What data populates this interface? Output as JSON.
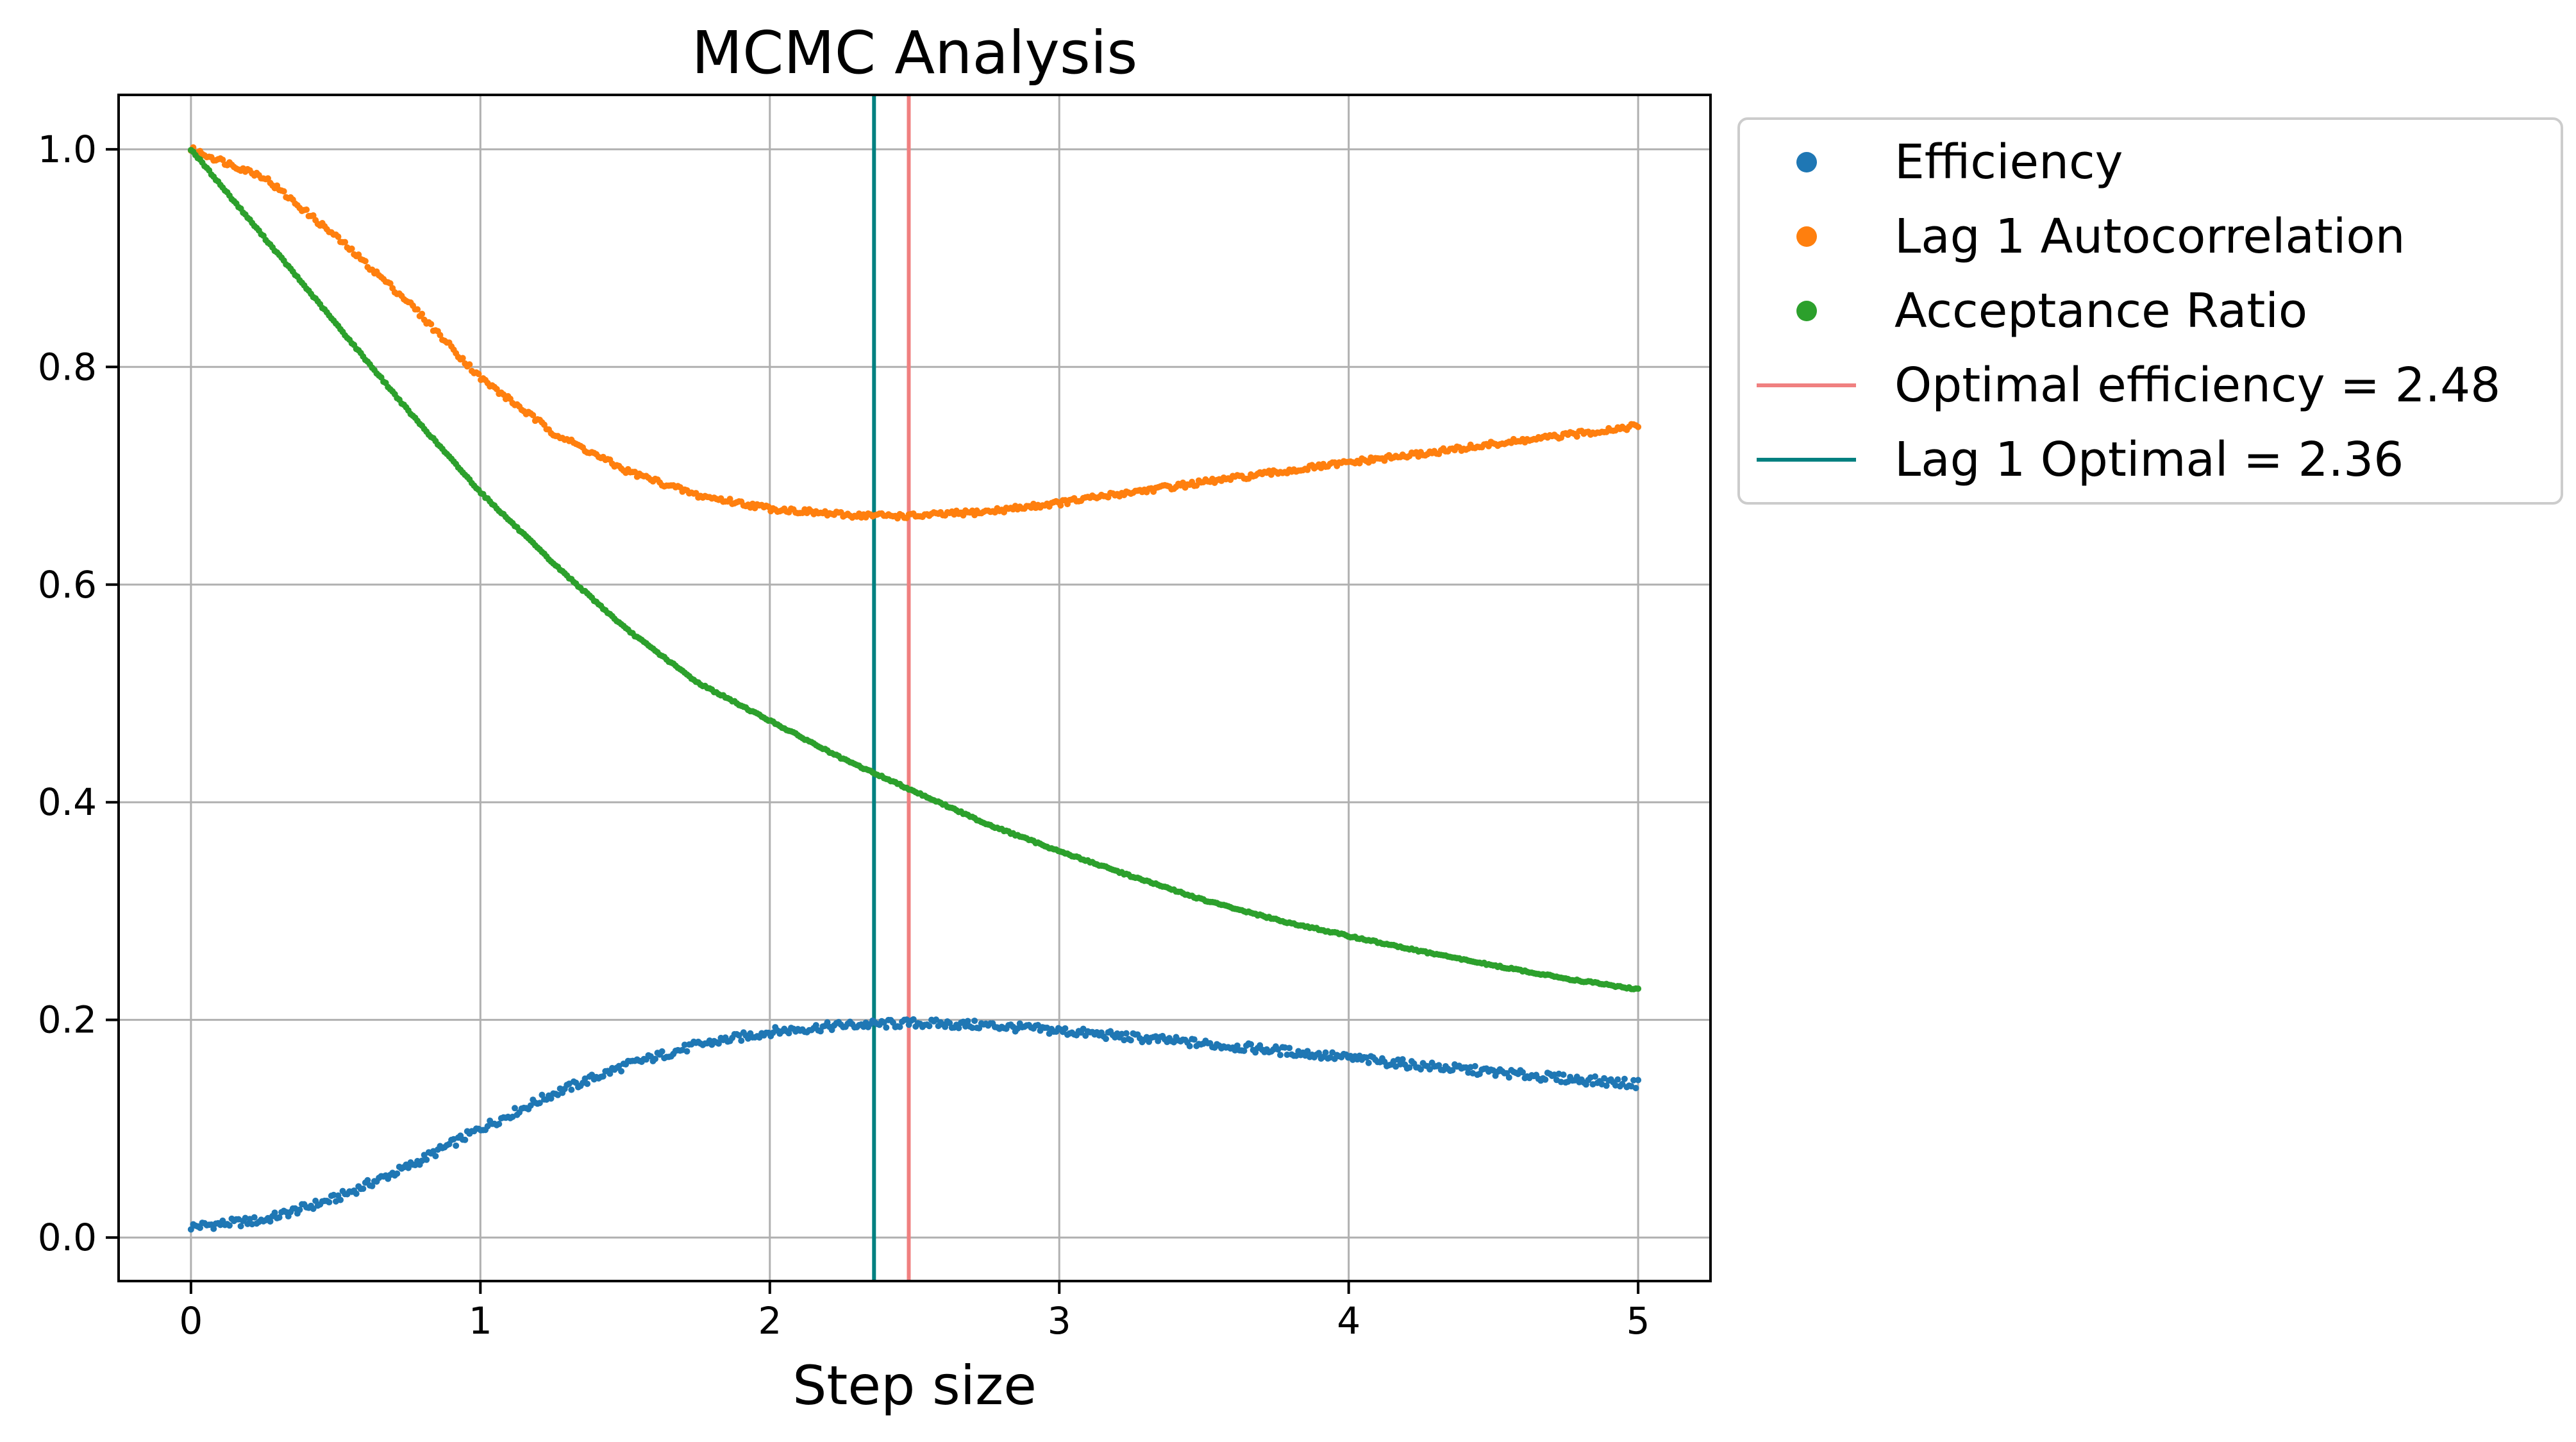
{
  "chart_data": {
    "type": "scatter",
    "title": "MCMC Analysis",
    "xlabel": "Step size",
    "ylabel": "",
    "xlim": [
      -0.25,
      5.25
    ],
    "ylim": [
      -0.04,
      1.05
    ],
    "xticks": [
      0,
      1,
      2,
      3,
      4,
      5
    ],
    "yticks": [
      0.0,
      0.2,
      0.4,
      0.6,
      0.8,
      1.0
    ],
    "xtick_labels": [
      "0",
      "1",
      "2",
      "3",
      "4",
      "5"
    ],
    "ytick_labels": [
      "0.0",
      "0.2",
      "0.4",
      "0.6",
      "0.8",
      "1.0"
    ],
    "grid": true,
    "legend_position": "outside top-right",
    "series": [
      {
        "name": "Efficiency",
        "kind": "scatter",
        "color": "#1f77b4",
        "x": [
          0.0,
          0.25,
          0.5,
          0.75,
          1.0,
          1.25,
          1.5,
          1.75,
          2.0,
          2.25,
          2.5,
          2.75,
          3.0,
          3.25,
          3.5,
          3.75,
          4.0,
          4.25,
          4.5,
          4.75,
          5.0
        ],
        "y": [
          0.01,
          0.016,
          0.036,
          0.065,
          0.1,
          0.132,
          0.158,
          0.177,
          0.189,
          0.195,
          0.197,
          0.195,
          0.19,
          0.184,
          0.178,
          0.172,
          0.165,
          0.158,
          0.152,
          0.146,
          0.141
        ]
      },
      {
        "name": "Lag 1 Autocorrelation",
        "kind": "scatter",
        "color": "#ff7f0e",
        "x": [
          0.0,
          0.25,
          0.5,
          0.75,
          1.0,
          1.25,
          1.5,
          1.75,
          2.0,
          2.25,
          2.5,
          2.75,
          3.0,
          3.25,
          3.5,
          3.75,
          4.0,
          4.25,
          4.5,
          4.75,
          5.0
        ],
        "y": [
          1.0,
          0.975,
          0.92,
          0.86,
          0.79,
          0.74,
          0.705,
          0.682,
          0.67,
          0.664,
          0.663,
          0.667,
          0.675,
          0.685,
          0.694,
          0.703,
          0.712,
          0.72,
          0.729,
          0.737,
          0.746
        ]
      },
      {
        "name": "Acceptance Ratio",
        "kind": "scatter",
        "color": "#2ca02c",
        "x": [
          0.0,
          0.25,
          0.5,
          0.75,
          1.0,
          1.25,
          1.5,
          1.75,
          2.0,
          2.25,
          2.5,
          2.75,
          3.0,
          3.25,
          3.5,
          3.75,
          4.0,
          4.25,
          4.5,
          4.75,
          5.0
        ],
        "y": [
          1.0,
          0.92,
          0.84,
          0.76,
          0.685,
          0.62,
          0.56,
          0.51,
          0.475,
          0.44,
          0.41,
          0.38,
          0.355,
          0.332,
          0.31,
          0.292,
          0.277,
          0.263,
          0.25,
          0.238,
          0.228
        ]
      },
      {
        "name": "Optimal efficiency = 2.48",
        "kind": "vline",
        "color": "#f08080",
        "x_value": 2.48
      },
      {
        "name": "Lag 1 Optimal = 2.36",
        "kind": "vline",
        "color": "#008080",
        "x_value": 2.36
      }
    ]
  }
}
